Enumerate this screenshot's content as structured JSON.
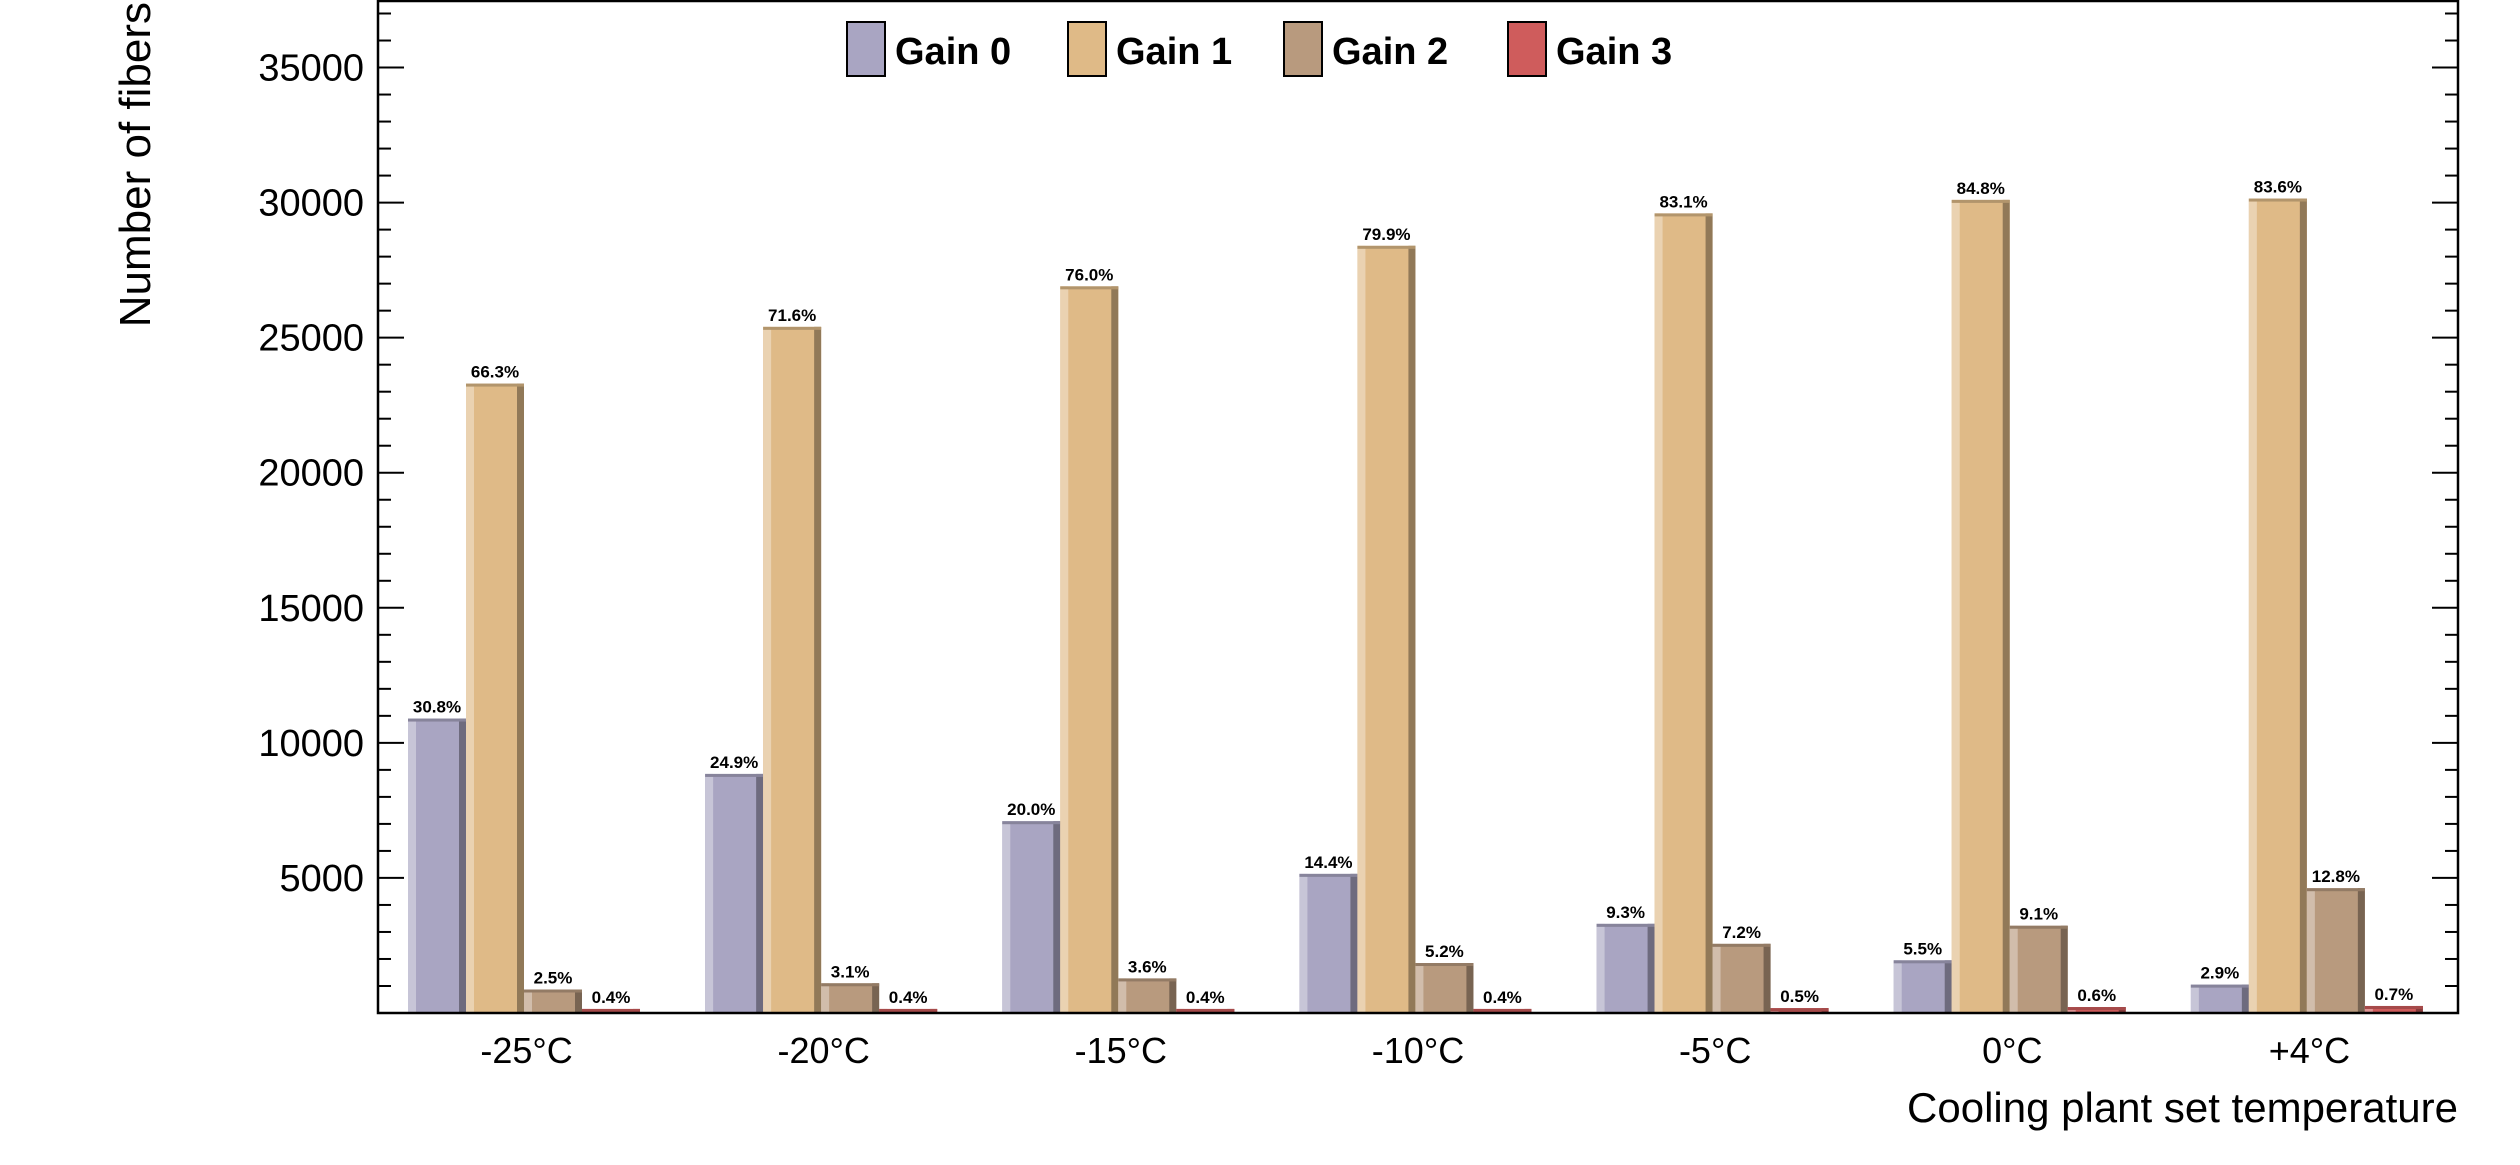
{
  "chart_data": {
    "type": "bar",
    "title": "",
    "xlabel": "Cooling plant set temperature",
    "ylabel": "Number of fibers",
    "ylim": [
      0,
      37500
    ],
    "yticks": [
      5000,
      10000,
      15000,
      20000,
      25000,
      30000,
      35000
    ],
    "ytick_labels": [
      "5000",
      "10000",
      "15000",
      "20000",
      "25000",
      "30000",
      "35000"
    ],
    "categories": [
      "-25°C",
      "-20°C",
      "-15°C",
      "-10°C",
      "-5°C",
      "0°C",
      "+4°C"
    ],
    "legend_position": "top",
    "series": [
      {
        "name": "Gain 0",
        "color": "#a9a5c2",
        "values": [
          10900,
          8850,
          7100,
          5150,
          3300,
          1950,
          1050
        ],
        "labels": [
          "30.8%",
          "24.9%",
          "20.0%",
          "14.4%",
          "9.3%",
          "5.5%",
          "2.9%"
        ]
      },
      {
        "name": "Gain 1",
        "color": "#dfba87",
        "values": [
          23300,
          25400,
          26900,
          28400,
          29600,
          30100,
          30150
        ],
        "labels": [
          "66.3%",
          "71.6%",
          "76.0%",
          "79.9%",
          "83.1%",
          "84.8%",
          "83.6%"
        ]
      },
      {
        "name": "Gain 2",
        "color": "#b89a7e",
        "values": [
          870,
          1100,
          1280,
          1850,
          2560,
          3230,
          4620
        ],
        "labels": [
          "2.5%",
          "3.1%",
          "3.6%",
          "5.2%",
          "7.2%",
          "9.1%",
          "12.8%"
        ]
      },
      {
        "name": "Gain 3",
        "color": "#cf5c5c",
        "values": [
          150,
          150,
          150,
          150,
          180,
          220,
          260
        ],
        "labels": [
          "0.4%",
          "0.4%",
          "0.4%",
          "0.4%",
          "0.5%",
          "0.6%",
          "0.7%"
        ]
      }
    ]
  }
}
